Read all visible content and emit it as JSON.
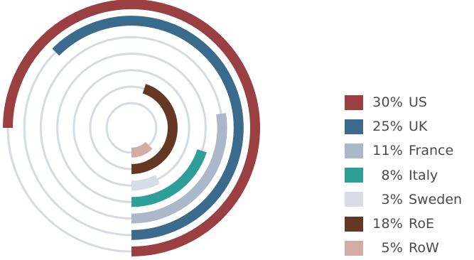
{
  "chart_data": {
    "type": "radial-bar",
    "title": "",
    "max_value": 40,
    "series": [
      {
        "name": "US",
        "label": "30%",
        "value": 30,
        "color": "#9a3f42"
      },
      {
        "name": "UK",
        "label": "25%",
        "value": 25,
        "color": "#3a6a8c"
      },
      {
        "name": "France",
        "label": "11%",
        "value": 11,
        "color": "#acb7c9"
      },
      {
        "name": "Italy",
        "label": "8%",
        "value": 8,
        "color": "#2e9f97"
      },
      {
        "name": "Sweden",
        "label": "3%",
        "value": 3,
        "color": "#d7dce6"
      },
      {
        "name": "RoE",
        "label": "18%",
        "value": 18,
        "color": "#643823"
      },
      {
        "name": "RoW",
        "label": "5%",
        "value": 5,
        "color": "#d3ada3"
      }
    ],
    "track_color": "#d6dbe3",
    "legend_position": "right"
  }
}
